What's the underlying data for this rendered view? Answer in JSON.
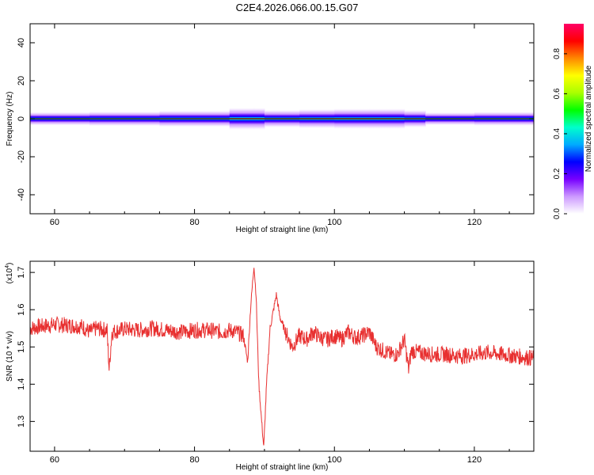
{
  "figure": {
    "title": "C2E4.2026.066.00.15.G07"
  },
  "chart_data": [
    {
      "type": "heatmap",
      "title": "C2E4.2026.066.00.15.G07",
      "xlabel": "Height of straight line (km)",
      "ylabel": "Frequency (Hz)",
      "xlim": [
        56.5,
        128.5
      ],
      "ylim": [
        -50,
        50
      ],
      "x_ticks": [
        60,
        80,
        100,
        120
      ],
      "y_ticks": [
        -40,
        -20,
        0,
        20,
        40
      ],
      "colorbar": {
        "label": "Normalized spectral amplitude",
        "range": [
          0,
          0.95
        ],
        "ticks": [
          0.0,
          0.2,
          0.4,
          0.6,
          0.8
        ],
        "tick_labels": [
          "0.0",
          "0.2",
          "0.4",
          "0.6",
          "0.8"
        ],
        "colormap": [
          "#ffffff",
          "#cc99ff",
          "#7700ff",
          "#0000ff",
          "#00aaff",
          "#00ffcc",
          "#00ff00",
          "#aaff00",
          "#ffff00",
          "#ff8800",
          "#ff0000",
          "#ff0066"
        ]
      },
      "ridge": {
        "frequency_hz": 0,
        "half_width_profile": [
          {
            "x": 56.5,
            "hz": 2.2
          },
          {
            "x": 65,
            "hz": 2.3
          },
          {
            "x": 75,
            "hz": 2.5
          },
          {
            "x": 85,
            "hz": 2.8
          },
          {
            "x": 88.5,
            "hz": 3.8
          },
          {
            "x": 90,
            "hz": 2.6
          },
          {
            "x": 95,
            "hz": 3.0
          },
          {
            "x": 100,
            "hz": 3.3
          },
          {
            "x": 105,
            "hz": 3.5
          },
          {
            "x": 110,
            "hz": 3.0
          },
          {
            "x": 113,
            "hz": 2.2
          },
          {
            "x": 120,
            "hz": 2.0
          },
          {
            "x": 128.5,
            "hz": 2.4
          }
        ]
      }
    },
    {
      "type": "line",
      "xlabel": "Height of straight line (km)",
      "ylabel": "SNR (10 * v/v)",
      "y_scale_label": "(x10",
      "y_scale_exponent": "4",
      "xlim": [
        56.5,
        128.5
      ],
      "ylim": [
        1.22,
        1.73
      ],
      "x_ticks": [
        60,
        80,
        100,
        120
      ],
      "y_ticks": [
        1.3,
        1.4,
        1.5,
        1.6,
        1.7
      ],
      "series": [
        {
          "color": "#e83030",
          "points": [
            [
              56.5,
              1.55
            ],
            [
              58,
              1.555
            ],
            [
              60,
              1.56
            ],
            [
              62,
              1.558
            ],
            [
              64,
              1.555
            ],
            [
              65,
              1.54
            ],
            [
              66,
              1.55
            ],
            [
              67.5,
              1.545
            ],
            [
              67.8,
              1.44
            ],
            [
              68.2,
              1.54
            ],
            [
              70,
              1.548
            ],
            [
              72,
              1.545
            ],
            [
              74,
              1.55
            ],
            [
              76,
              1.545
            ],
            [
              78,
              1.54
            ],
            [
              80,
              1.545
            ],
            [
              82,
              1.545
            ],
            [
              84,
              1.54
            ],
            [
              85,
              1.545
            ],
            [
              86,
              1.54
            ],
            [
              87,
              1.53
            ],
            [
              87.6,
              1.46
            ],
            [
              88,
              1.6
            ],
            [
              88.5,
              1.72
            ],
            [
              88.8,
              1.64
            ],
            [
              89.2,
              1.4
            ],
            [
              89.6,
              1.3
            ],
            [
              89.9,
              1.23
            ],
            [
              90.3,
              1.4
            ],
            [
              90.8,
              1.55
            ],
            [
              91.3,
              1.6
            ],
            [
              91.7,
              1.64
            ],
            [
              92.2,
              1.58
            ],
            [
              93,
              1.54
            ],
            [
              94,
              1.5
            ],
            [
              95,
              1.53
            ],
            [
              96,
              1.52
            ],
            [
              97,
              1.54
            ],
            [
              98,
              1.525
            ],
            [
              99,
              1.52
            ],
            [
              100,
              1.53
            ],
            [
              101,
              1.52
            ],
            [
              102,
              1.54
            ],
            [
              103,
              1.525
            ],
            [
              104,
              1.53
            ],
            [
              105,
              1.54
            ],
            [
              106,
              1.5
            ],
            [
              107,
              1.49
            ],
            [
              108,
              1.48
            ],
            [
              109,
              1.48
            ],
            [
              110,
              1.52
            ],
            [
              110.6,
              1.44
            ],
            [
              111,
              1.49
            ],
            [
              112,
              1.485
            ],
            [
              114,
              1.48
            ],
            [
              116,
              1.48
            ],
            [
              118,
              1.475
            ],
            [
              120,
              1.48
            ],
            [
              122,
              1.485
            ],
            [
              124,
              1.48
            ],
            [
              126,
              1.475
            ],
            [
              128.5,
              1.47
            ]
          ]
        }
      ]
    }
  ]
}
